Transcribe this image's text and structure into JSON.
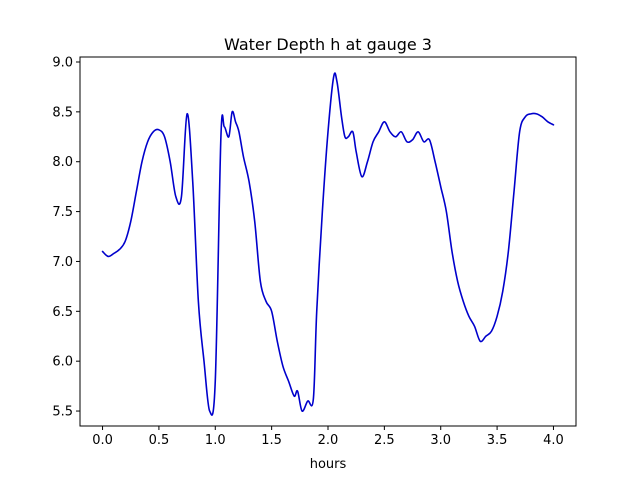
{
  "chart_data": {
    "type": "line",
    "title": "Water Depth h at gauge 3",
    "xlabel": "hours",
    "ylabel": "",
    "xlim": [
      -0.2,
      4.2
    ],
    "ylim": [
      5.35,
      9.05
    ],
    "xticks": [
      0.0,
      0.5,
      1.0,
      1.5,
      2.0,
      2.5,
      3.0,
      3.5,
      4.0
    ],
    "xtick_labels": [
      "0.0",
      "0.5",
      "1.0",
      "1.5",
      "2.0",
      "2.5",
      "3.0",
      "3.5",
      "4.0"
    ],
    "yticks": [
      5.5,
      6.0,
      6.5,
      7.0,
      7.5,
      8.0,
      8.5,
      9.0
    ],
    "ytick_labels": [
      "5.5",
      "6.0",
      "6.5",
      "7.0",
      "7.5",
      "8.0",
      "8.5",
      "9.0"
    ],
    "grid": false,
    "line_color": "#0000cc",
    "series": [
      {
        "x": [
          0.0,
          0.05,
          0.1,
          0.15,
          0.2,
          0.25,
          0.3,
          0.35,
          0.4,
          0.45,
          0.5,
          0.55,
          0.6,
          0.65,
          0.7,
          0.75,
          0.8,
          0.85,
          0.9,
          0.95,
          1.0,
          1.05,
          1.08,
          1.12,
          1.15,
          1.18,
          1.21,
          1.25,
          1.3,
          1.35,
          1.4,
          1.45,
          1.5,
          1.55,
          1.6,
          1.65,
          1.7,
          1.73,
          1.77,
          1.82,
          1.87,
          1.9,
          1.95,
          2.0,
          2.05,
          2.08,
          2.12,
          2.15,
          2.18,
          2.22,
          2.25,
          2.3,
          2.35,
          2.4,
          2.45,
          2.5,
          2.55,
          2.6,
          2.65,
          2.7,
          2.75,
          2.8,
          2.85,
          2.9,
          2.95,
          3.0,
          3.05,
          3.1,
          3.15,
          3.2,
          3.25,
          3.3,
          3.35,
          3.4,
          3.45,
          3.5,
          3.55,
          3.6,
          3.65,
          3.7,
          3.75,
          3.8,
          3.85,
          3.9,
          3.95,
          4.0
        ],
        "y": [
          7.1,
          7.05,
          7.08,
          7.12,
          7.2,
          7.4,
          7.7,
          8.0,
          8.2,
          8.3,
          8.32,
          8.25,
          8.0,
          7.65,
          7.65,
          8.48,
          7.8,
          6.6,
          6.0,
          5.5,
          5.8,
          8.25,
          8.35,
          8.25,
          8.5,
          8.4,
          8.3,
          8.05,
          7.8,
          7.4,
          6.8,
          6.6,
          6.5,
          6.2,
          5.95,
          5.8,
          5.65,
          5.7,
          5.5,
          5.6,
          5.62,
          6.5,
          7.5,
          8.3,
          8.85,
          8.8,
          8.45,
          8.25,
          8.25,
          8.3,
          8.1,
          7.85,
          8.0,
          8.2,
          8.3,
          8.4,
          8.3,
          8.25,
          8.3,
          8.2,
          8.22,
          8.3,
          8.2,
          8.22,
          8.0,
          7.75,
          7.5,
          7.1,
          6.8,
          6.6,
          6.45,
          6.35,
          6.2,
          6.25,
          6.3,
          6.45,
          6.7,
          7.1,
          7.7,
          8.3,
          8.45,
          8.48,
          8.48,
          8.45,
          8.4,
          8.37
        ]
      }
    ]
  }
}
